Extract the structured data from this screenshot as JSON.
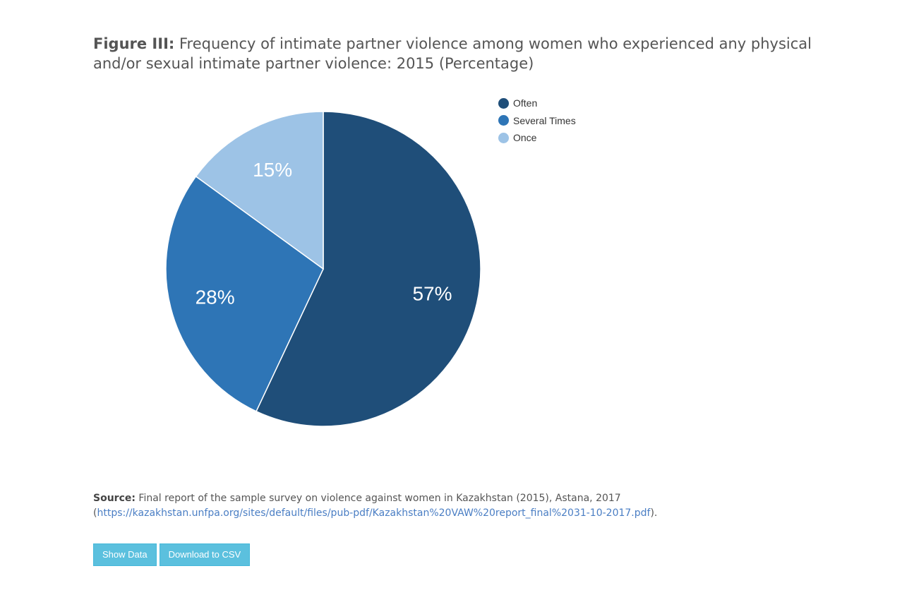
{
  "header": {
    "figure_label": "Figure III:",
    "title": "Frequency of intimate partner violence among women who experienced any physical and/or sexual intimate partner violence: 2015 (Percentage)"
  },
  "chart_data": {
    "type": "pie",
    "title": "Frequency of intimate partner violence among women who experienced any physical and/or sexual intimate partner violence: 2015 (Percentage)",
    "legend_position": "top-right",
    "slices": [
      {
        "name": "Often",
        "value": 57,
        "label": "57%",
        "color": "#1f4e79"
      },
      {
        "name": "Several Times",
        "value": 28,
        "label": "28%",
        "color": "#2e75b6"
      },
      {
        "name": "Once",
        "value": 15,
        "label": "15%",
        "color": "#9dc3e6"
      }
    ]
  },
  "source": {
    "label": "Source:",
    "text": "Final report of the sample survey on violence against women in Kazakhstan (2015), Astana, 2017",
    "open_paren": "(",
    "link": "https://kazakhstan.unfpa.org/sites/default/files/pub-pdf/Kazakhstan%20VAW%20report_final%2031-10-2017.pdf",
    "close": ")."
  },
  "buttons": {
    "show_data": "Show Data",
    "download_csv": "Download to CSV"
  }
}
